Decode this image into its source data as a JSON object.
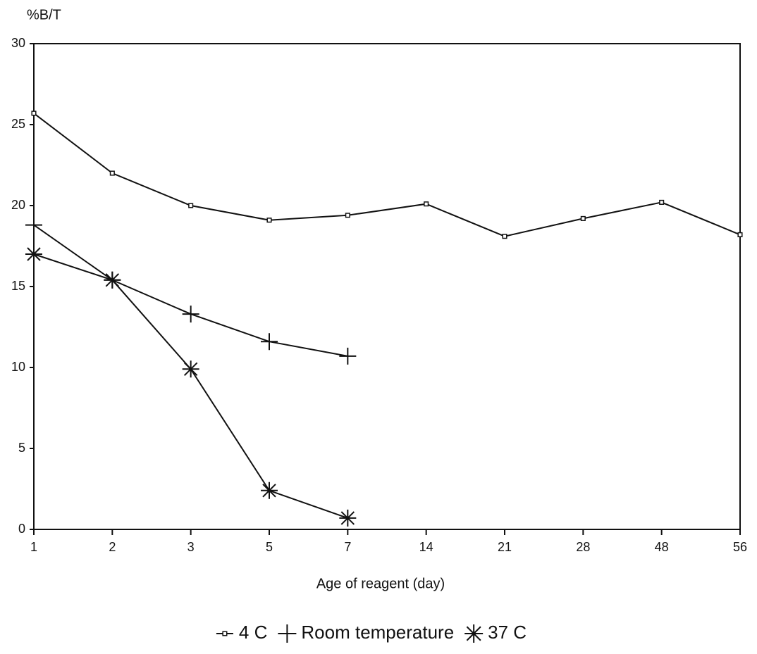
{
  "chart_data": {
    "type": "line",
    "y_label": "%B/T",
    "x_label": "Age of reagent (day)",
    "categories": [
      "1",
      "2",
      "3",
      "5",
      "7",
      "14",
      "21",
      "28",
      "48",
      "56"
    ],
    "ylim": [
      0,
      30
    ],
    "yticks": [
      0,
      5,
      10,
      15,
      20,
      25,
      30
    ],
    "legend": "bottom",
    "series": [
      {
        "name": "4 C",
        "color": "#111111",
        "marker": "square",
        "values": [
          25.7,
          22.0,
          20.0,
          19.1,
          19.4,
          20.1,
          18.1,
          19.2,
          20.2,
          18.2
        ]
      },
      {
        "name": "Room temperature",
        "color": "#111111",
        "marker": "plus",
        "values": [
          18.8,
          15.4,
          13.3,
          11.6,
          10.7,
          null,
          null,
          null,
          null,
          null
        ]
      },
      {
        "name": "37 C",
        "color": "#111111",
        "marker": "asterisk",
        "values": [
          17.0,
          15.4,
          9.9,
          2.4,
          0.7,
          null,
          null,
          null,
          null,
          null
        ]
      }
    ]
  }
}
